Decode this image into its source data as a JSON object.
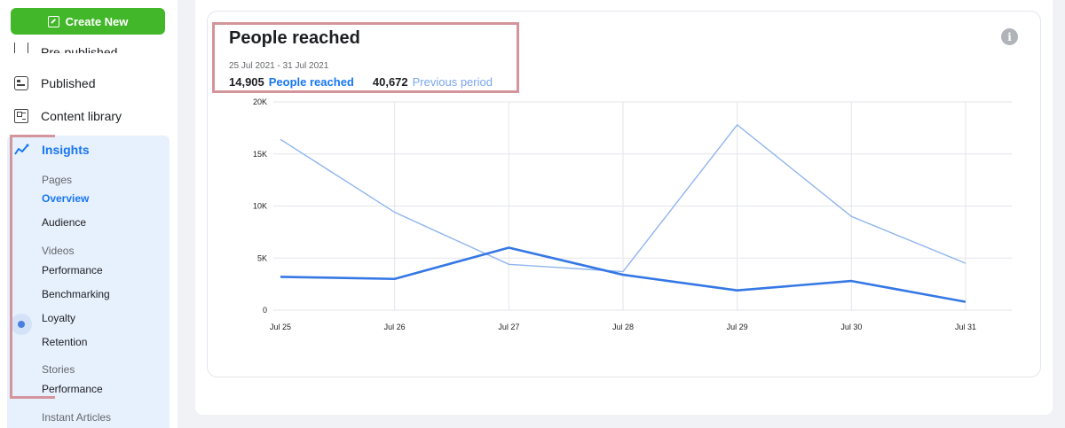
{
  "sidebar": {
    "create_label": "Create New",
    "items": [
      {
        "label": "Pre-published"
      },
      {
        "label": "Published"
      },
      {
        "label": "Content library"
      }
    ],
    "insights": {
      "label": "Insights",
      "groups": {
        "pages": "Pages",
        "videos": "Videos",
        "stories": "Stories",
        "instant": "Instant Articles"
      },
      "pages_items": [
        "Overview",
        "Audience"
      ],
      "videos_items": [
        "Performance",
        "Benchmarking",
        "Loyalty",
        "Retention"
      ],
      "stories_items": [
        "Performance"
      ]
    }
  },
  "card": {
    "title": "People reached",
    "date_range": "25 Jul 2021 - 31 Jul 2021",
    "current_value": "14,905",
    "current_label": "People reached",
    "previous_value": "40,672",
    "previous_label": "Previous period",
    "info_icon": "i"
  },
  "colors": {
    "current": "#3578e5",
    "previous": "#8fb4ee",
    "accent": "#1877f2",
    "create": "#42b72a",
    "highlight": "#d4949c"
  },
  "chart_data": {
    "type": "line",
    "categories": [
      "Jul 25",
      "Jul 26",
      "Jul 27",
      "Jul 28",
      "Jul 29",
      "Jul 30",
      "Jul 31"
    ],
    "y_ticks": [
      "0",
      "5K",
      "10K",
      "15K",
      "20K"
    ],
    "ylim": [
      0,
      20000
    ],
    "grid": true,
    "series": [
      {
        "name": "People reached",
        "values": [
          3200,
          3000,
          6000,
          3400,
          1900,
          2800,
          800
        ]
      },
      {
        "name": "Previous period",
        "values": [
          16400,
          9400,
          4400,
          3700,
          17800,
          9000,
          4500
        ]
      }
    ]
  }
}
